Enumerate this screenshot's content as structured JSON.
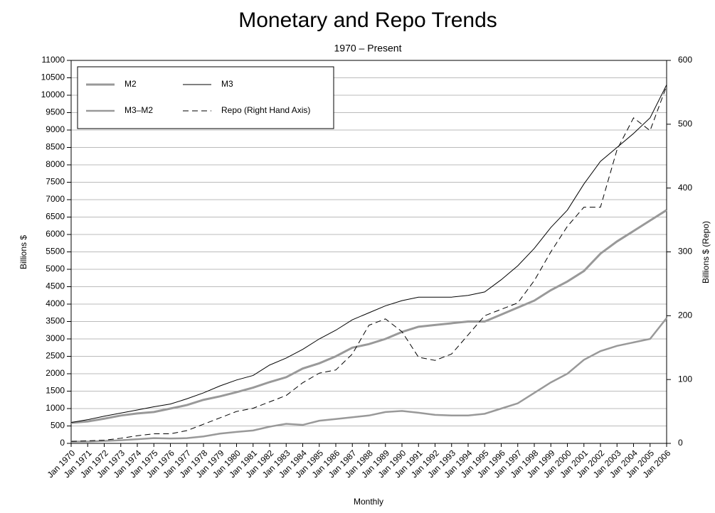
{
  "chart_data": {
    "type": "line",
    "title": "Monetary and Repo Trends",
    "subtitle": "1970 – Present",
    "xlabel": "Monthly",
    "ylabel": "Billions $",
    "y2label": "Billions $ (Repo)",
    "x": [
      1970,
      1971,
      1972,
      1973,
      1974,
      1975,
      1976,
      1977,
      1978,
      1979,
      1980,
      1981,
      1982,
      1983,
      1984,
      1985,
      1986,
      1987,
      1988,
      1989,
      1990,
      1991,
      1992,
      1993,
      1994,
      1995,
      1996,
      1997,
      1998,
      1999,
      2000,
      2001,
      2002,
      2003,
      2004,
      2005,
      2006
    ],
    "xlim": [
      1970,
      2006
    ],
    "xticks": [
      {
        "value": 1970,
        "label": "Jan 1970"
      },
      {
        "value": 1971,
        "label": "Jan 1971"
      },
      {
        "value": 1972,
        "label": "Jan 1972"
      },
      {
        "value": 1973,
        "label": "Jan 1973"
      },
      {
        "value": 1974,
        "label": "Jan 1974"
      },
      {
        "value": 1975,
        "label": "Jan 1975"
      },
      {
        "value": 1976,
        "label": "Jan 1976"
      },
      {
        "value": 1977,
        "label": "Jan 1977"
      },
      {
        "value": 1978,
        "label": "Jan 1978"
      },
      {
        "value": 1979,
        "label": "Jan 1979"
      },
      {
        "value": 1980,
        "label": "Jan 1980"
      },
      {
        "value": 1981,
        "label": "Jan 1981"
      },
      {
        "value": 1982,
        "label": "Jan 1982"
      },
      {
        "value": 1983,
        "label": "Jan 1983"
      },
      {
        "value": 1984,
        "label": "Jan 1984"
      },
      {
        "value": 1985,
        "label": "Jan 1985"
      },
      {
        "value": 1986,
        "label": "Jan 1986"
      },
      {
        "value": 1987,
        "label": "Jan 1987"
      },
      {
        "value": 1988,
        "label": "Jan 1988"
      },
      {
        "value": 1989,
        "label": "Jan 1989"
      },
      {
        "value": 1990,
        "label": "Jan 1990"
      },
      {
        "value": 1991,
        "label": "Jan 1991"
      },
      {
        "value": 1992,
        "label": "Jan 1992"
      },
      {
        "value": 1993,
        "label": "Jan 1993"
      },
      {
        "value": 1994,
        "label": "Jan 1994"
      },
      {
        "value": 1995,
        "label": "Jan 1995"
      },
      {
        "value": 1996,
        "label": "Jan 1996"
      },
      {
        "value": 1997,
        "label": "Jan 1997"
      },
      {
        "value": 1998,
        "label": "Jan 1998"
      },
      {
        "value": 1999,
        "label": "Jan 1999"
      },
      {
        "value": 2000,
        "label": "Jan 2000"
      },
      {
        "value": 2001,
        "label": "Jan 2001"
      },
      {
        "value": 2002,
        "label": "Jan 2002"
      },
      {
        "value": 2003,
        "label": "Jan 2003"
      },
      {
        "value": 2004,
        "label": "Jan 2004"
      },
      {
        "value": 2005,
        "label": "Jan 2005"
      },
      {
        "value": 2006,
        "label": "Jan 2006"
      }
    ],
    "ylim": [
      0,
      11000
    ],
    "yticks": [
      0,
      500,
      1000,
      1500,
      2000,
      2500,
      3000,
      3500,
      4000,
      4500,
      5000,
      5500,
      6000,
      6500,
      7000,
      7500,
      8000,
      8500,
      9000,
      9500,
      10000,
      10500,
      11000
    ],
    "y2lim": [
      0,
      600
    ],
    "y2ticks": [
      0,
      100,
      200,
      300,
      400,
      500,
      600
    ],
    "grid": true,
    "legend": "upper left",
    "series": [
      {
        "name": "M2",
        "color": "#999999",
        "line_width": 3,
        "dash": false,
        "values": [
          590,
          630,
          710,
          800,
          860,
          900,
          1000,
          1100,
          1250,
          1350,
          1470,
          1600,
          1760,
          1900,
          2150,
          2300,
          2500,
          2750,
          2850,
          3000,
          3200,
          3350,
          3400,
          3450,
          3500,
          3500,
          3700,
          3900,
          4100,
          4400,
          4650,
          4950,
          5450,
          5800,
          6100,
          6400,
          6700
        ]
      },
      {
        "name": "M3",
        "color": "#000000",
        "line_width": 1,
        "dash": false,
        "values": [
          600,
          680,
          780,
          870,
          960,
          1050,
          1130,
          1280,
          1450,
          1650,
          1820,
          1950,
          2250,
          2450,
          2700,
          3000,
          3250,
          3550,
          3750,
          3950,
          4100,
          4200,
          4200,
          4200,
          4250,
          4350,
          4700,
          5100,
          5600,
          6200,
          6700,
          7450,
          8100,
          8500,
          8900,
          9350,
          10300
        ]
      },
      {
        "name": "M3–M2",
        "color": "#999999",
        "line_width": 2.5,
        "dash": false,
        "values": [
          50,
          50,
          70,
          90,
          120,
          150,
          140,
          150,
          200,
          280,
          330,
          370,
          480,
          560,
          530,
          650,
          700,
          750,
          800,
          900,
          930,
          880,
          820,
          800,
          800,
          850,
          1000,
          1150,
          1450,
          1750,
          2000,
          2400,
          2650,
          2800,
          2900,
          3000,
          3600
        ]
      },
      {
        "name": "Repo (Right Hand Axis)",
        "color": "#000000",
        "line_width": 1,
        "dash": true,
        "axis": "y2",
        "values": [
          3,
          4,
          5,
          8,
          12,
          15,
          15,
          20,
          30,
          40,
          50,
          55,
          65,
          75,
          95,
          110,
          115,
          140,
          185,
          195,
          175,
          135,
          130,
          140,
          170,
          200,
          210,
          220,
          255,
          300,
          340,
          370,
          370,
          460,
          510,
          490,
          560
        ]
      }
    ]
  }
}
